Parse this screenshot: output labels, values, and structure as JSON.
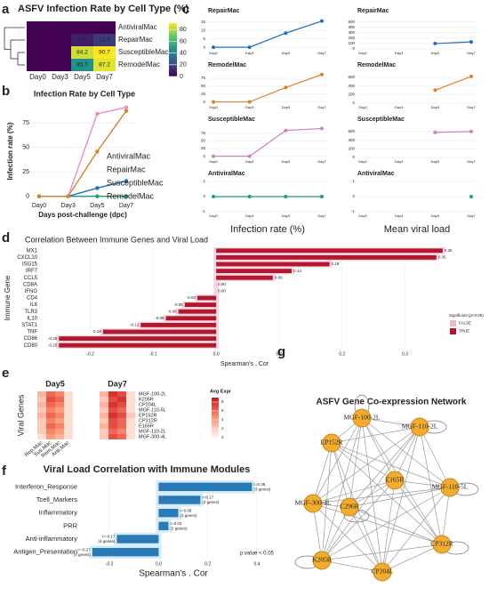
{
  "chart_data": [
    {
      "type": "heatmap",
      "panel": "a",
      "title": "ASFV Infection Rate by Cell Type (%)",
      "rows": [
        "AntiviralMac",
        "RepairMac",
        "SusceptibleMac",
        "RemodelMac"
      ],
      "row_colors": [
        "#1b9e77",
        "#1f6fbf",
        "#d17fc0",
        "#d9822b"
      ],
      "columns": [
        "Day0",
        "Day3",
        "Day5",
        "Day7"
      ],
      "values": [
        [
          0,
          0,
          0,
          0
        ],
        [
          0,
          0,
          8.4,
          15.6
        ],
        [
          0,
          0,
          84.2,
          90.7
        ],
        [
          0,
          0,
          45.7,
          87.2
        ]
      ],
      "value_labels": [
        [
          "0.0",
          "0.0",
          "0.0",
          "0.0"
        ],
        [
          "0.0",
          "0.0",
          "8.4",
          "15.6"
        ],
        [
          "0.0",
          "0.0",
          "84.2",
          "90.7"
        ],
        [
          "0.0",
          "0.0",
          "45.7",
          "87.2"
        ]
      ],
      "zlim": [
        0,
        91
      ],
      "colorbar_ticks": [
        0,
        20,
        40,
        60,
        80
      ],
      "colormap": "viridis"
    },
    {
      "type": "line",
      "panel": "b",
      "title": "Infection Rate by Cell Type",
      "categories": [
        "Day0",
        "Day3",
        "Day5",
        "Day7"
      ],
      "xlabel": "Days post-challenge (dpc)",
      "ylabel": "Infection rate (%)",
      "ylim": [
        -3,
        95
      ],
      "yticks": [
        0,
        25,
        50,
        75
      ],
      "grid": true,
      "legend": "right",
      "series": [
        {
          "name": "AntiviralMac",
          "color": "#1b9e77",
          "values": [
            0,
            0,
            0,
            0
          ]
        },
        {
          "name": "RepairMac",
          "color": "#1f6fbf",
          "values": [
            0,
            0,
            8.4,
            15.6
          ]
        },
        {
          "name": "SusceptibleMac",
          "color": "#e48fcb",
          "values": [
            0,
            0,
            84.2,
            90.7
          ]
        },
        {
          "name": "RemodelMac",
          "color": "#d9822b",
          "values": [
            0,
            0,
            45.7,
            87.2
          ]
        }
      ]
    },
    {
      "type": "small_multiples",
      "panel": "c",
      "categories": [
        "Day0",
        "Day3",
        "Day5",
        "Day7"
      ],
      "columns": [
        {
          "xlabel": "Infection rate (%)",
          "panels": [
            {
              "title": "RepairMac",
              "color": "#1f6fbf",
              "values": [
                0,
                0,
                8.4,
                15.6
              ],
              "ylim": [
                -1,
                17
              ],
              "yticks": [
                0,
                5,
                10,
                15
              ]
            },
            {
              "title": "RemodelMac",
              "color": "#d9822b",
              "values": [
                0,
                0,
                45.7,
                87.2
              ],
              "ylim": [
                -4,
                92
              ],
              "yticks": [
                0,
                25,
                50,
                75
              ]
            },
            {
              "title": "SusceptibleMac",
              "color": "#d17fc0",
              "values": [
                0,
                0,
                84.2,
                90.7
              ],
              "ylim": [
                -4,
                95
              ],
              "yticks": [
                0,
                25,
                50,
                75
              ]
            },
            {
              "title": "AntiviralMac",
              "color": "#1b9e77",
              "values": [
                0,
                0,
                0,
                0
              ],
              "ylim": [
                -1,
                1
              ],
              "yticks": [
                -1,
                0,
                1
              ]
            }
          ]
        },
        {
          "xlabel": "Mean viral load",
          "panels": [
            {
              "title": "RepairMac",
              "color": "#1f6fbf",
              "values": [
                null,
                null,
                100,
                130
              ],
              "ylim": [
                0,
                560
              ],
              "yticks": [
                0,
                100,
                200,
                300,
                400,
                500
              ]
            },
            {
              "title": "RemodelMac",
              "color": "#d9822b",
              "values": [
                null,
                null,
                300,
                620
              ],
              "ylim": [
                0,
                700
              ],
              "yticks": [
                0,
                200,
                400,
                600
              ]
            },
            {
              "title": "SusceptibleMac",
              "color": "#d17fc0",
              "values": [
                null,
                null,
                580,
                600
              ],
              "ylim": [
                0,
                700
              ],
              "yticks": [
                0,
                200,
                400,
                600
              ]
            },
            {
              "title": "AntiviralMac",
              "color": "#1b9e77",
              "values": [
                null,
                null,
                null,
                0
              ],
              "ylim": [
                -1,
                1
              ],
              "yticks": [
                -1,
                0,
                1
              ]
            }
          ]
        }
      ]
    },
    {
      "type": "hbar",
      "panel": "d",
      "title": "Correlation Between Immune Genes and Viral Load",
      "ylabel": "Immune Gene",
      "xlabel": "Spearman's . Cor",
      "categories": [
        "MX1",
        "CXCL10",
        "ISG15",
        "IRF7",
        "CCL5",
        "CD8A",
        "IFNG",
        "CD4",
        "IL6",
        "TLR3",
        "IL10",
        "STAT1",
        "TNF",
        "CD86",
        "CD80"
      ],
      "values": [
        0.36,
        0.35,
        0.18,
        0.12,
        0.09,
        0,
        0,
        -0.03,
        -0.05,
        -0.06,
        -0.08,
        -0.12,
        -0.18,
        -0.25,
        -0.25
      ],
      "value_labels": [
        "0.36",
        "0.35",
        "0.18",
        "0.12",
        "0.09",
        "0.00",
        "0.00",
        "-0.03",
        "-0.05",
        "-0.06",
        "-0.08",
        "-0.12",
        "-0.18",
        "-0.25",
        "-0.25"
      ],
      "significant": [
        true,
        true,
        true,
        true,
        true,
        false,
        false,
        true,
        true,
        true,
        true,
        true,
        true,
        true,
        true
      ],
      "xlim": [
        -0.28,
        0.37
      ],
      "xticks": [
        -0.2,
        -0.1,
        {
          "value": 0,
          "label": "0.0"
        },
        0.1,
        0.2,
        0.3
      ],
      "legend": {
        "title": "Significant (p<0.05)",
        "entries": [
          {
            "label": "FALSE",
            "color": "#f2b6cf"
          },
          {
            "label": "TRUE",
            "color": "#b2182b"
          }
        ]
      }
    },
    {
      "type": "heatmap_group",
      "panel": "e",
      "ylabel": "Viral Genes",
      "columns": [
        "Rep.Mac",
        "Sus.Mac",
        "Rem.Mac",
        "Anti.Mac"
      ],
      "rows": [
        "MGF-100-2L",
        "K205R",
        "CP204L",
        "MGF-110-5L",
        "EP152R",
        "CP312R",
        "E165R",
        "MGF-110-2L",
        "MGF-300-4L"
      ],
      "panels": [
        {
          "title": "Day5",
          "values": [
            [
              3,
              6,
              5,
              1
            ],
            [
              2,
              7,
              6,
              1
            ],
            [
              3,
              6,
              5,
              1
            ],
            [
              2,
              5,
              4,
              1
            ],
            [
              3,
              6,
              5,
              1
            ],
            [
              2,
              5,
              4,
              1
            ],
            [
              2,
              6,
              5,
              1
            ],
            [
              2,
              5,
              4,
              1
            ],
            [
              1,
              4,
              3,
              1
            ]
          ]
        },
        {
          "title": "Day7",
          "values": [
            [
              3,
              8,
              7,
              1
            ],
            [
              2,
              7,
              8,
              1
            ],
            [
              3,
              8,
              7,
              1
            ],
            [
              2,
              7,
              6,
              1
            ],
            [
              3,
              8,
              7,
              2
            ],
            [
              2,
              7,
              6,
              1
            ],
            [
              3,
              7,
              6,
              1
            ],
            [
              2,
              6,
              5,
              1
            ],
            [
              2,
              7,
              6,
              1
            ]
          ]
        }
      ],
      "legend_title": "Avg Expr",
      "zlim": [
        0,
        9
      ],
      "colorbar_ticks": [
        8,
        6,
        4,
        2,
        0
      ],
      "colormap": "reds"
    },
    {
      "type": "hbar",
      "panel": "f",
      "title": "Viral Load Correlation with Immune Modules",
      "xlabel": "Spearman's . Cor",
      "categories": [
        "Interferon_Response",
        "Tcell_Markers",
        "Inflammatory",
        "PRR",
        "Anti-inflammatory",
        "Antigen_Presentation"
      ],
      "values": [
        0.38,
        0.17,
        0.08,
        0.04,
        -0.17,
        -0.27
      ],
      "value_labels": [
        "r=0.38",
        "r=0.17",
        "r=0.08",
        "r=0.04",
        "r=-0.17",
        "r=-0.27"
      ],
      "annotations": [
        "(3 genes)",
        "(4 genes)",
        "(3 genes)",
        "(2 genes)",
        "(4 genes)",
        "(4 genes)"
      ],
      "color": "#2a7ab8",
      "xlim": [
        -0.32,
        0.44
      ],
      "xticks": [
        -0.2,
        {
          "value": 0,
          "label": "0.0"
        },
        0.2,
        0.4
      ],
      "note": "p.value < 0.05"
    },
    {
      "type": "network",
      "panel": "g",
      "title": "ASFV Gene Co-expression Network",
      "nodes": [
        "MGF-100-2L",
        "MGF-110-2L",
        "EP152R",
        "E165R",
        "MGF-110-5L",
        "MGF-300-4L",
        "C296R",
        "CP312R",
        "K205R",
        "CP204L"
      ]
    }
  ]
}
